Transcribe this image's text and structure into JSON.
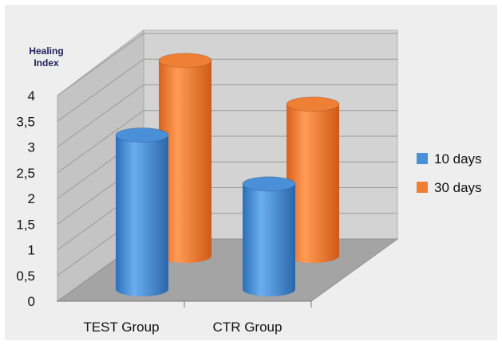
{
  "chart_data": {
    "type": "bar",
    "style": "3d-cylinder",
    "title": "",
    "ylabel_lines": [
      "Healing",
      "Index"
    ],
    "xlabel": "",
    "categories": [
      "TEST Group",
      "CTR Group"
    ],
    "ylim": [
      0,
      4
    ],
    "yticks": [
      "0",
      "0,5",
      "1",
      "1,5",
      "2",
      "2,5",
      "3",
      "3,5",
      "4"
    ],
    "series": [
      {
        "name": "10 days",
        "values": [
          3.0,
          2.05
        ],
        "color": "#4a90d9"
      },
      {
        "name": "30 days",
        "values": [
          3.8,
          2.95
        ],
        "color": "#f07f36"
      }
    ],
    "legend_position": "right",
    "grid": true
  }
}
